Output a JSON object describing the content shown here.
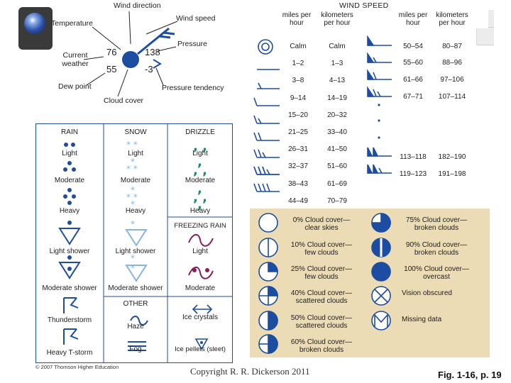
{
  "station_model": {
    "labels": {
      "wind_direction": "Wind direction",
      "temperature": "Temperature",
      "wind_speed": "Wind speed",
      "pressure": "Pressure",
      "current_weather": "Current weather",
      "dew_point": "Dew point",
      "pressure_tendency": "Pressure tendency",
      "cloud_cover": "Cloud cover"
    },
    "values": {
      "temperature": "76",
      "dew_point": "55",
      "pressure": "138",
      "pressure_tendency": "-3"
    }
  },
  "wind_speed": {
    "title": "WIND SPEED",
    "col_mph": "miles per hour",
    "col_kmh": "kilometers per hour",
    "rows_left": [
      {
        "mph": "Calm",
        "kmh": "Calm"
      },
      {
        "mph": "1–2",
        "kmh": "1–3"
      },
      {
        "mph": "3–8",
        "kmh": "4–13"
      },
      {
        "mph": "9–14",
        "kmh": "14–19"
      },
      {
        "mph": "15–20",
        "kmh": "20–32"
      },
      {
        "mph": "21–25",
        "kmh": "33–40"
      },
      {
        "mph": "26–31",
        "kmh": "41–50"
      },
      {
        "mph": "32–37",
        "kmh": "51–60"
      },
      {
        "mph": "38–43",
        "kmh": "61–69"
      },
      {
        "mph": "44–49",
        "kmh": "70–79"
      }
    ],
    "rows_right": [
      {
        "mph": "50–54",
        "kmh": "80–87"
      },
      {
        "mph": "55–60",
        "kmh": "88–96"
      },
      {
        "mph": "61–66",
        "kmh": "97–106"
      },
      {
        "mph": "67–71",
        "kmh": "107–114"
      },
      {
        "mph": "113–118",
        "kmh": "182–190"
      },
      {
        "mph": "119–123",
        "kmh": "191–198"
      }
    ]
  },
  "weather": {
    "rain": {
      "title": "RAIN",
      "light": "Light",
      "moderate": "Moderate",
      "heavy": "Heavy",
      "light_shower": "Light shower",
      "moderate_shower": "Moderate shower"
    },
    "snow": {
      "title": "SNOW",
      "light": "Light",
      "moderate": "Moderate",
      "heavy": "Heavy",
      "light_shower": "Light shower",
      "moderate_shower": "Moderate shower"
    },
    "drizzle": {
      "title": "DRIZZLE",
      "light": "Light",
      "moderate": "Moderate",
      "heavy": "Heavy"
    },
    "freezing_rain": {
      "title": "FREEZING RAIN",
      "light": "Light",
      "moderate": "Moderate"
    },
    "thunderstorm": "Thunderstorm",
    "heavy_tstorm": "Heavy T-storm",
    "other": {
      "title": "OTHER",
      "haze": "Haze",
      "fog": "Fog"
    },
    "ice_crystals": "Ice crystals",
    "ice_pellets": "Ice pellets (sleet)"
  },
  "cloud_cover": {
    "left": [
      {
        "line1": "0% Cloud cover—",
        "line2": "clear skies"
      },
      {
        "line1": "10% Cloud cover—",
        "line2": "few clouds"
      },
      {
        "line1": "25% Cloud cover—",
        "line2": "few clouds"
      },
      {
        "line1": "40% Cloud cover—",
        "line2": "scattered clouds"
      },
      {
        "line1": "50% Cloud cover—",
        "line2": "scattered clouds"
      },
      {
        "line1": "60% Cloud cover—",
        "line2": "broken clouds"
      }
    ],
    "right": [
      {
        "line1": "75% Cloud cover—",
        "line2": "broken clouds"
      },
      {
        "line1": "90% Cloud cover—",
        "line2": "broken clouds"
      },
      {
        "line1": "100% Cloud cover—",
        "line2": "overcast"
      },
      {
        "line1": "Vision obscured",
        "line2": ""
      },
      {
        "line1": "Missing data",
        "line2": ""
      }
    ]
  },
  "footer": {
    "publisher": "© 2007 Thomson Higher Education",
    "copyright": "Copyright R. R. Dickerson 2011",
    "figure": "Fig. 1-16, p. 19"
  },
  "colors": {
    "symbol_blue": "#1c4da1",
    "light_blue": "#8ab4e0",
    "maroon": "#8b1d5c",
    "teal": "#1f8a6a",
    "cloud_panel": "#ecdcb6"
  }
}
